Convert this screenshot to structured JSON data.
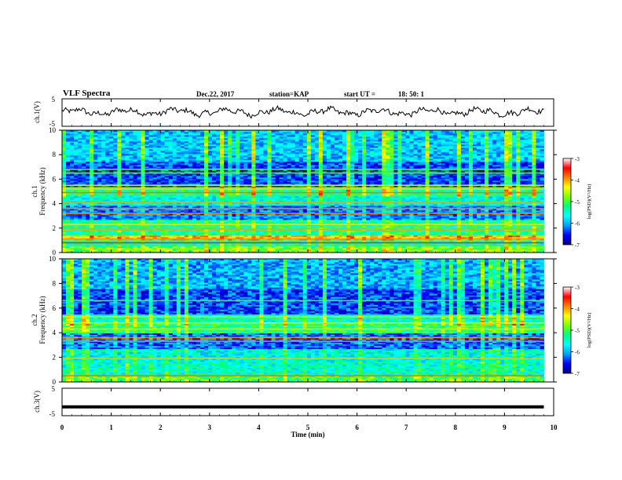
{
  "header": {
    "title": "VLF Spectra",
    "date": "Dec.22, 2017",
    "station": "station=KAP",
    "start_label": "start  UT =",
    "start_time": "18: 50: 1"
  },
  "x_axis": {
    "label": "Time  (min)",
    "ticks": [
      "0",
      "1",
      "2",
      "3",
      "4",
      "5",
      "6",
      "7",
      "8",
      "9",
      "10"
    ],
    "range": [
      0,
      10
    ]
  },
  "colorbar": {
    "label": "log(PSD)(V²/Hz)",
    "ticks": [
      "-3",
      "-4",
      "-5",
      "-6",
      "-7"
    ],
    "range": [
      -7,
      -3
    ],
    "colormap": [
      "#000080",
      "#0000ff",
      "#00a0ff",
      "#00ffff",
      "#00ff80",
      "#80ff00",
      "#ffff00",
      "#ff8000",
      "#ff0000",
      "#ffffff"
    ]
  },
  "chart_data": [
    {
      "type": "line",
      "id": "ch1",
      "ylabel": "ch.1(V)",
      "ylim": [
        -5,
        5
      ],
      "yticks": [
        "5",
        "-5"
      ],
      "x_range_min": [
        0,
        9.8
      ],
      "mean_v": 0.2,
      "amplitude_v": 1.5,
      "line_color": "#000000"
    },
    {
      "type": "heatmap",
      "id": "ch1-spectrogram",
      "ylabel_line1": "ch.1",
      "ylabel_line2": "Frequency (kHz)",
      "ylim": [
        0,
        10
      ],
      "yticks": [
        "0",
        "2",
        "4",
        "6",
        "8",
        "10"
      ],
      "x_range_min": [
        0,
        9.8
      ],
      "bands_khz": [
        {
          "from": 0.0,
          "to": 0.4,
          "level": -4.8
        },
        {
          "from": 0.4,
          "to": 1.0,
          "level": -5.4
        },
        {
          "from": 1.0,
          "to": 1.3,
          "level": -4.2
        },
        {
          "from": 1.3,
          "to": 2.6,
          "level": -5.3
        },
        {
          "from": 2.6,
          "to": 3.8,
          "level": -6.2
        },
        {
          "from": 3.8,
          "to": 4.6,
          "level": -5.6
        },
        {
          "from": 4.6,
          "to": 5.3,
          "level": -5.3
        },
        {
          "from": 5.3,
          "to": 7.4,
          "level": -6.4
        },
        {
          "from": 7.4,
          "to": 10.0,
          "level": -5.9
        }
      ],
      "lines_khz": [
        {
          "f": 0.8,
          "level": -3.4
        },
        {
          "f": 1.1,
          "level": -3.9
        },
        {
          "f": 1.9,
          "level": -4.0
        },
        {
          "f": 2.3,
          "level": -4.2
        },
        {
          "f": 3.2,
          "level": -3.9
        },
        {
          "f": 3.6,
          "level": -3.9
        },
        {
          "f": 4.1,
          "level": -4.0
        },
        {
          "f": 4.9,
          "level": -3.8
        },
        {
          "f": 5.2,
          "level": -4.2
        },
        {
          "f": 5.5,
          "level": -4.4
        },
        {
          "f": 6.5,
          "level": -4.8
        },
        {
          "f": 6.8,
          "level": -4.9
        }
      ]
    },
    {
      "type": "heatmap",
      "id": "ch2-spectrogram",
      "ylabel_line1": "ch.2",
      "ylabel_line2": "Frequency (kHz)",
      "ylim": [
        0,
        10
      ],
      "yticks": [
        "0",
        "2",
        "4",
        "6",
        "8",
        "10"
      ],
      "x_range_min": [
        0,
        9.8
      ],
      "bands_khz": [
        {
          "from": 0.0,
          "to": 0.4,
          "level": -5.0
        },
        {
          "from": 0.4,
          "to": 1.6,
          "level": -5.5
        },
        {
          "from": 1.6,
          "to": 2.6,
          "level": -5.6
        },
        {
          "from": 2.6,
          "to": 3.9,
          "level": -6.3
        },
        {
          "from": 3.9,
          "to": 4.8,
          "level": -5.2
        },
        {
          "from": 4.8,
          "to": 5.5,
          "level": -5.5
        },
        {
          "from": 5.5,
          "to": 7.5,
          "level": -6.4
        },
        {
          "from": 7.5,
          "to": 10.0,
          "level": -6.0
        }
      ],
      "lines_khz": [
        {
          "f": 0.5,
          "level": -3.8
        },
        {
          "f": 1.9,
          "level": -4.1
        },
        {
          "f": 3.3,
          "level": -3.9
        },
        {
          "f": 3.6,
          "level": -4.0
        },
        {
          "f": 4.3,
          "level": -4.2
        },
        {
          "f": 4.8,
          "level": -4.4
        },
        {
          "f": 5.3,
          "level": -4.5
        },
        {
          "f": 6.6,
          "level": -4.9
        }
      ]
    },
    {
      "type": "line",
      "id": "ch3",
      "ylabel": "ch.3(V)",
      "ylim": [
        -5,
        5
      ],
      "yticks": [
        "5",
        "-5"
      ],
      "x_range_min": [
        0,
        9.8
      ],
      "constant_v": -1.8,
      "line_color": "#000000"
    }
  ]
}
